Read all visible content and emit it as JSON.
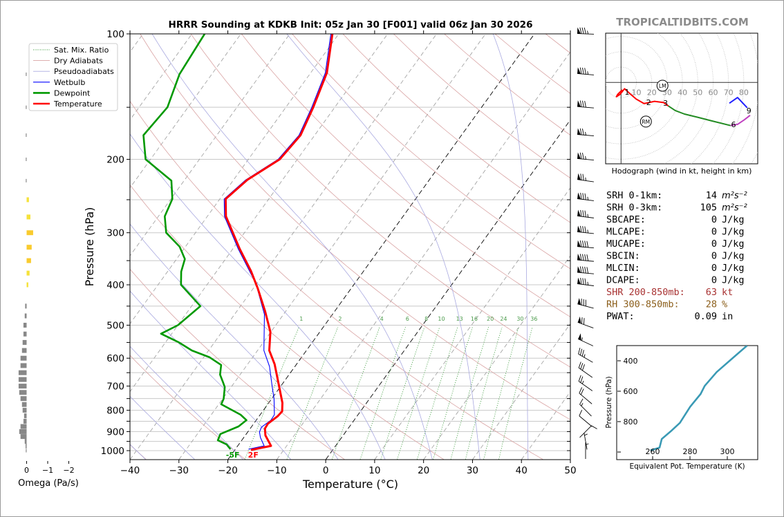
{
  "title": "HRRR Sounding at KDKB Init: 05z Jan 30 [F001] valid 06z Jan 30 2026",
  "watermark": "TROPICALTIDBITS.COM",
  "legend": [
    {
      "label": "Sat. Mix. Ratio",
      "color": "#3a9a3a",
      "style": "dotted"
    },
    {
      "label": "Dry Adiabats",
      "color": "#d9a3a3",
      "style": "thin"
    },
    {
      "label": "Pseudoadiabats",
      "color": "#a9a9e0",
      "style": "thin"
    },
    {
      "label": "Wetbulb",
      "color": "#0000ff",
      "style": "solid"
    },
    {
      "label": "Dewpoint",
      "color": "#009900",
      "style": "thick"
    },
    {
      "label": "Temperature",
      "color": "#ff0000",
      "style": "thick"
    }
  ],
  "stats": [
    {
      "label": "SRH 0-1km:",
      "value": "14",
      "unit": "m²s⁻²",
      "color": "#000000",
      "italic_unit": true
    },
    {
      "label": "SRH 0-3km:",
      "value": "105",
      "unit": "m²s⁻²",
      "color": "#000000",
      "italic_unit": true
    },
    {
      "label": "SBCAPE:",
      "value": "0",
      "unit": "J/kg",
      "color": "#000000"
    },
    {
      "label": "MLCAPE:",
      "value": "0",
      "unit": "J/kg",
      "color": "#000000"
    },
    {
      "label": "MUCAPE:",
      "value": "0",
      "unit": "J/kg",
      "color": "#000000"
    },
    {
      "label": "SBCIN:",
      "value": "0",
      "unit": "J/kg",
      "color": "#000000"
    },
    {
      "label": "MLCIN:",
      "value": "0",
      "unit": "J/kg",
      "color": "#000000"
    },
    {
      "label": "DCAPE:",
      "value": "0",
      "unit": "J/kg",
      "color": "#000000"
    },
    {
      "label": "SHR 200-850mb:",
      "value": "63",
      "unit": "kt",
      "color": "#a83232"
    },
    {
      "label": "RH 300-850mb:",
      "value": "28",
      "unit": "%",
      "color": "#8b5e1a"
    },
    {
      "label": "PWAT:",
      "value": "0.09",
      "unit": "in",
      "color": "#000000"
    }
  ],
  "chart_data": [
    {
      "type": "line",
      "xlabel": "Temperature (°C)",
      "ylabel": "Pressure (hPa)",
      "xlim": [
        -40,
        50
      ],
      "ylim": [
        1050,
        100
      ],
      "y_scale": "log",
      "grid": true,
      "legend_position": "top-left",
      "pressure_ticks": [
        "100",
        "200",
        "300",
        "400",
        "500",
        "600",
        "700",
        "800",
        "900",
        "1000"
      ],
      "temperature_ticks": [
        "−40",
        "−30",
        "−20",
        "−10",
        "0",
        "10",
        "20",
        "30",
        "40",
        "50"
      ],
      "isotherm_step": 10,
      "highlighted_isotherms": [
        -20,
        0
      ],
      "dry_adiabats_theta_c": {
        "from": -40,
        "to": 240,
        "step": 20
      },
      "moist_adiabats_t1000_c": {
        "from": -40,
        "to": 40,
        "step": 10
      },
      "mixing_ratio_labels": [
        "1",
        "2",
        "4",
        "6",
        "8",
        "10",
        "13",
        "16",
        "20",
        "24",
        "30",
        "36"
      ],
      "surface_labels": {
        "dewpoint": "-5F",
        "temperature": "2F"
      },
      "series": [
        {
          "name": "Temperature",
          "color": "#ff0000",
          "points": [
            [
              100,
              -61.3
            ],
            [
              124,
              -56.7
            ],
            [
              150,
              -54.4
            ],
            [
              175,
              -52.9
            ],
            [
              200,
              -53.6
            ],
            [
              224,
              -57.2
            ],
            [
              249,
              -58.8
            ],
            [
              274,
              -56.2
            ],
            [
              328,
              -48.6
            ],
            [
              371,
              -43.0
            ],
            [
              408,
              -39.1
            ],
            [
              462,
              -34.3
            ],
            [
              519,
              -30.1
            ],
            [
              575,
              -27.6
            ],
            [
              620,
              -24.5
            ],
            [
              685,
              -21.1
            ],
            [
              768,
              -17.2
            ],
            [
              805,
              -16.0
            ],
            [
              826,
              -16.2
            ],
            [
              862,
              -17.1
            ],
            [
              885,
              -17.0
            ],
            [
              919,
              -15.9
            ],
            [
              974,
              -13.2
            ],
            [
              996,
              -16.7
            ]
          ]
        },
        {
          "name": "Dewpoint",
          "color": "#009900",
          "points": [
            [
              100,
              -87.4
            ],
            [
              125,
              -86.6
            ],
            [
              150,
              -84.2
            ],
            [
              175,
              -85.0
            ],
            [
              200,
              -81.0
            ],
            [
              225,
              -72.6
            ],
            [
              249,
              -69.7
            ],
            [
              274,
              -68.7
            ],
            [
              300,
              -66.0
            ],
            [
              324,
              -61.2
            ],
            [
              347,
              -58.3
            ],
            [
              372,
              -57.2
            ],
            [
              400,
              -55.3
            ],
            [
              450,
              -48.2
            ],
            [
              500,
              -50.0
            ],
            [
              524,
              -52.2
            ],
            [
              549,
              -47.4
            ],
            [
              575,
              -43.4
            ],
            [
              597,
              -38.8
            ],
            [
              623,
              -35.3
            ],
            [
              657,
              -34.1
            ],
            [
              685,
              -32.4
            ],
            [
              704,
              -31.3
            ],
            [
              751,
              -29.8
            ],
            [
              774,
              -29.5
            ],
            [
              820,
              -24.0
            ],
            [
              845,
              -22.0
            ],
            [
              875,
              -22.7
            ],
            [
              912,
              -25.3
            ],
            [
              944,
              -24.9
            ],
            [
              966,
              -22.5
            ],
            [
              992,
              -21.0
            ]
          ]
        },
        {
          "name": "Wetbulb",
          "color": "#0000ff",
          "points": [
            [
              100,
              -61.6
            ],
            [
              124,
              -57.0
            ],
            [
              150,
              -54.7
            ],
            [
              175,
              -53.2
            ],
            [
              200,
              -53.9
            ],
            [
              224,
              -57.5
            ],
            [
              249,
              -59.1
            ],
            [
              274,
              -56.5
            ],
            [
              328,
              -48.9
            ],
            [
              397,
              -40.2
            ],
            [
              471,
              -33.9
            ],
            [
              575,
              -28.7
            ],
            [
              628,
              -25.2
            ],
            [
              704,
              -21.6
            ],
            [
              751,
              -19.5
            ],
            [
              820,
              -17.1
            ],
            [
              845,
              -17.0
            ],
            [
              878,
              -17.9
            ],
            [
              902,
              -17.6
            ],
            [
              930,
              -16.6
            ],
            [
              974,
              -14.6
            ],
            [
              992,
              -17.3
            ]
          ]
        }
      ],
      "wind_barbs": [
        {
          "p": 100,
          "speed_kt": 85,
          "dir_deg": 272
        },
        {
          "p": 125,
          "speed_kt": 85,
          "dir_deg": 275
        },
        {
          "p": 150,
          "speed_kt": 80,
          "dir_deg": 275
        },
        {
          "p": 175,
          "speed_kt": 75,
          "dir_deg": 275
        },
        {
          "p": 200,
          "speed_kt": 75,
          "dir_deg": 275
        },
        {
          "p": 225,
          "speed_kt": 75,
          "dir_deg": 278
        },
        {
          "p": 250,
          "speed_kt": 85,
          "dir_deg": 277
        },
        {
          "p": 275,
          "speed_kt": 85,
          "dir_deg": 277
        },
        {
          "p": 300,
          "speed_kt": 85,
          "dir_deg": 276
        },
        {
          "p": 325,
          "speed_kt": 90,
          "dir_deg": 275
        },
        {
          "p": 350,
          "speed_kt": 90,
          "dir_deg": 275
        },
        {
          "p": 375,
          "speed_kt": 90,
          "dir_deg": 275
        },
        {
          "p": 400,
          "speed_kt": 85,
          "dir_deg": 277
        },
        {
          "p": 450,
          "speed_kt": 80,
          "dir_deg": 285
        },
        {
          "p": 500,
          "speed_kt": 70,
          "dir_deg": 290
        },
        {
          "p": 550,
          "speed_kt": 55,
          "dir_deg": 295
        },
        {
          "p": 600,
          "speed_kt": 35,
          "dir_deg": 300
        },
        {
          "p": 650,
          "speed_kt": 30,
          "dir_deg": 305
        },
        {
          "p": 700,
          "speed_kt": 25,
          "dir_deg": 305
        },
        {
          "p": 750,
          "speed_kt": 20,
          "dir_deg": 310
        },
        {
          "p": 800,
          "speed_kt": 15,
          "dir_deg": 315
        },
        {
          "p": 850,
          "speed_kt": 10,
          "dir_deg": 310
        },
        {
          "p": 900,
          "speed_kt": 10,
          "dir_deg": 45
        },
        {
          "p": 950,
          "speed_kt": 5,
          "dir_deg": 350
        },
        {
          "p": 1000,
          "speed_kt": 5,
          "dir_deg": 0
        }
      ]
    },
    {
      "type": "bar",
      "xlabel": "Omega (Pa/s)",
      "x_ticks": [
        "0",
        "−1",
        "−2"
      ],
      "levels_hpa": [
        125,
        150,
        175,
        200,
        225,
        250,
        275,
        300,
        325,
        350,
        375,
        400,
        450,
        475,
        500,
        525,
        550,
        575,
        600,
        625,
        650,
        675,
        700,
        725,
        750,
        775,
        800,
        825,
        850,
        875,
        900,
        925,
        950,
        975,
        1000
      ],
      "values": [
        0.01,
        0.02,
        0.01,
        0.01,
        0.01,
        -0.11,
        -0.18,
        -0.31,
        -0.24,
        -0.21,
        -0.14,
        -0.08,
        0.07,
        0.09,
        0.15,
        0.15,
        0.19,
        0.22,
        0.29,
        0.29,
        0.38,
        0.38,
        0.38,
        0.35,
        0.29,
        0.22,
        0.19,
        0.12,
        0.15,
        0.29,
        0.35,
        0.29,
        0.09,
        0.05,
        0.02
      ],
      "colors": {
        "positive": "#888888",
        "negative_small": "#f5e23a",
        "negative_large": "#f9cb2e"
      }
    },
    {
      "type": "line",
      "title": "Hodograph (wind in kt, height in km)",
      "ring_labels": [
        "10",
        "20",
        "30",
        "40",
        "50",
        "60",
        "70",
        "80"
      ],
      "segments": [
        {
          "color": "#ff0000",
          "points": [
            [
              0.8,
              -4.8
            ],
            [
              -2.2,
              -7.8
            ],
            [
              -3,
              -9.3
            ],
            [
              -0.7,
              -7.8
            ],
            [
              2.3,
              -4.1
            ],
            [
              5.6,
              -7.1
            ],
            [
              9.8,
              -10.8
            ],
            [
              15,
              -13.8
            ],
            [
              21.8,
              -12.3
            ],
            [
              27.8,
              -13.1
            ],
            [
              30.8,
              -15.3
            ]
          ]
        },
        {
          "color": "#228b22",
          "points": [
            [
              30.8,
              -15.3
            ],
            [
              35.3,
              -18.3
            ],
            [
              41.3,
              -20.6
            ],
            [
              50.3,
              -22.8
            ],
            [
              59.3,
              -25.1
            ],
            [
              71.4,
              -28.1
            ]
          ]
        },
        {
          "color": "#c040c0",
          "points": [
            [
              71.4,
              -28.1
            ],
            [
              75.9,
              -27.3
            ],
            [
              80.4,
              -24.3
            ],
            [
              84.1,
              -21.4
            ]
          ]
        },
        {
          "color": "#2020ff",
          "points": [
            [
              82.2,
              -16.5
            ],
            [
              75.9,
              -9.8
            ],
            [
              70.6,
              -13.5
            ]
          ]
        }
      ],
      "height_labels": [
        {
          "label": "1",
          "u": 3.9,
          "v": -6.2
        },
        {
          "label": "2",
          "u": 18,
          "v": -13
        },
        {
          "label": "3",
          "u": 29,
          "v": -13.4
        },
        {
          "label": "6",
          "u": 73.3,
          "v": -27.3
        },
        {
          "label": "9",
          "u": 83.3,
          "v": -18.3
        }
      ],
      "storm_motion": [
        {
          "label": "LM",
          "u": 27,
          "v": -2.1
        },
        {
          "label": "RM",
          "u": 16.2,
          "v": -25.5
        }
      ]
    },
    {
      "type": "line",
      "xlabel": "Equivalent Pot. Temperature (K)",
      "ylabel": "Pressure (hPa)",
      "x_ticks": [
        "260",
        "280",
        "300"
      ],
      "y_ticks": [
        "400",
        "600",
        "800"
      ],
      "xlim": [
        240.8,
        316.3
      ],
      "ylim": [
        1050,
        300
      ],
      "color": "#3a9ab5",
      "points": [
        [
          258.8,
          989
        ],
        [
          263.7,
          971
        ],
        [
          264.9,
          914
        ],
        [
          269.6,
          865
        ],
        [
          274.6,
          808
        ],
        [
          280.1,
          702
        ],
        [
          285.7,
          618
        ],
        [
          287.9,
          565
        ],
        [
          294.3,
          474
        ],
        [
          304.2,
          368
        ],
        [
          310.6,
          300
        ]
      ]
    }
  ]
}
